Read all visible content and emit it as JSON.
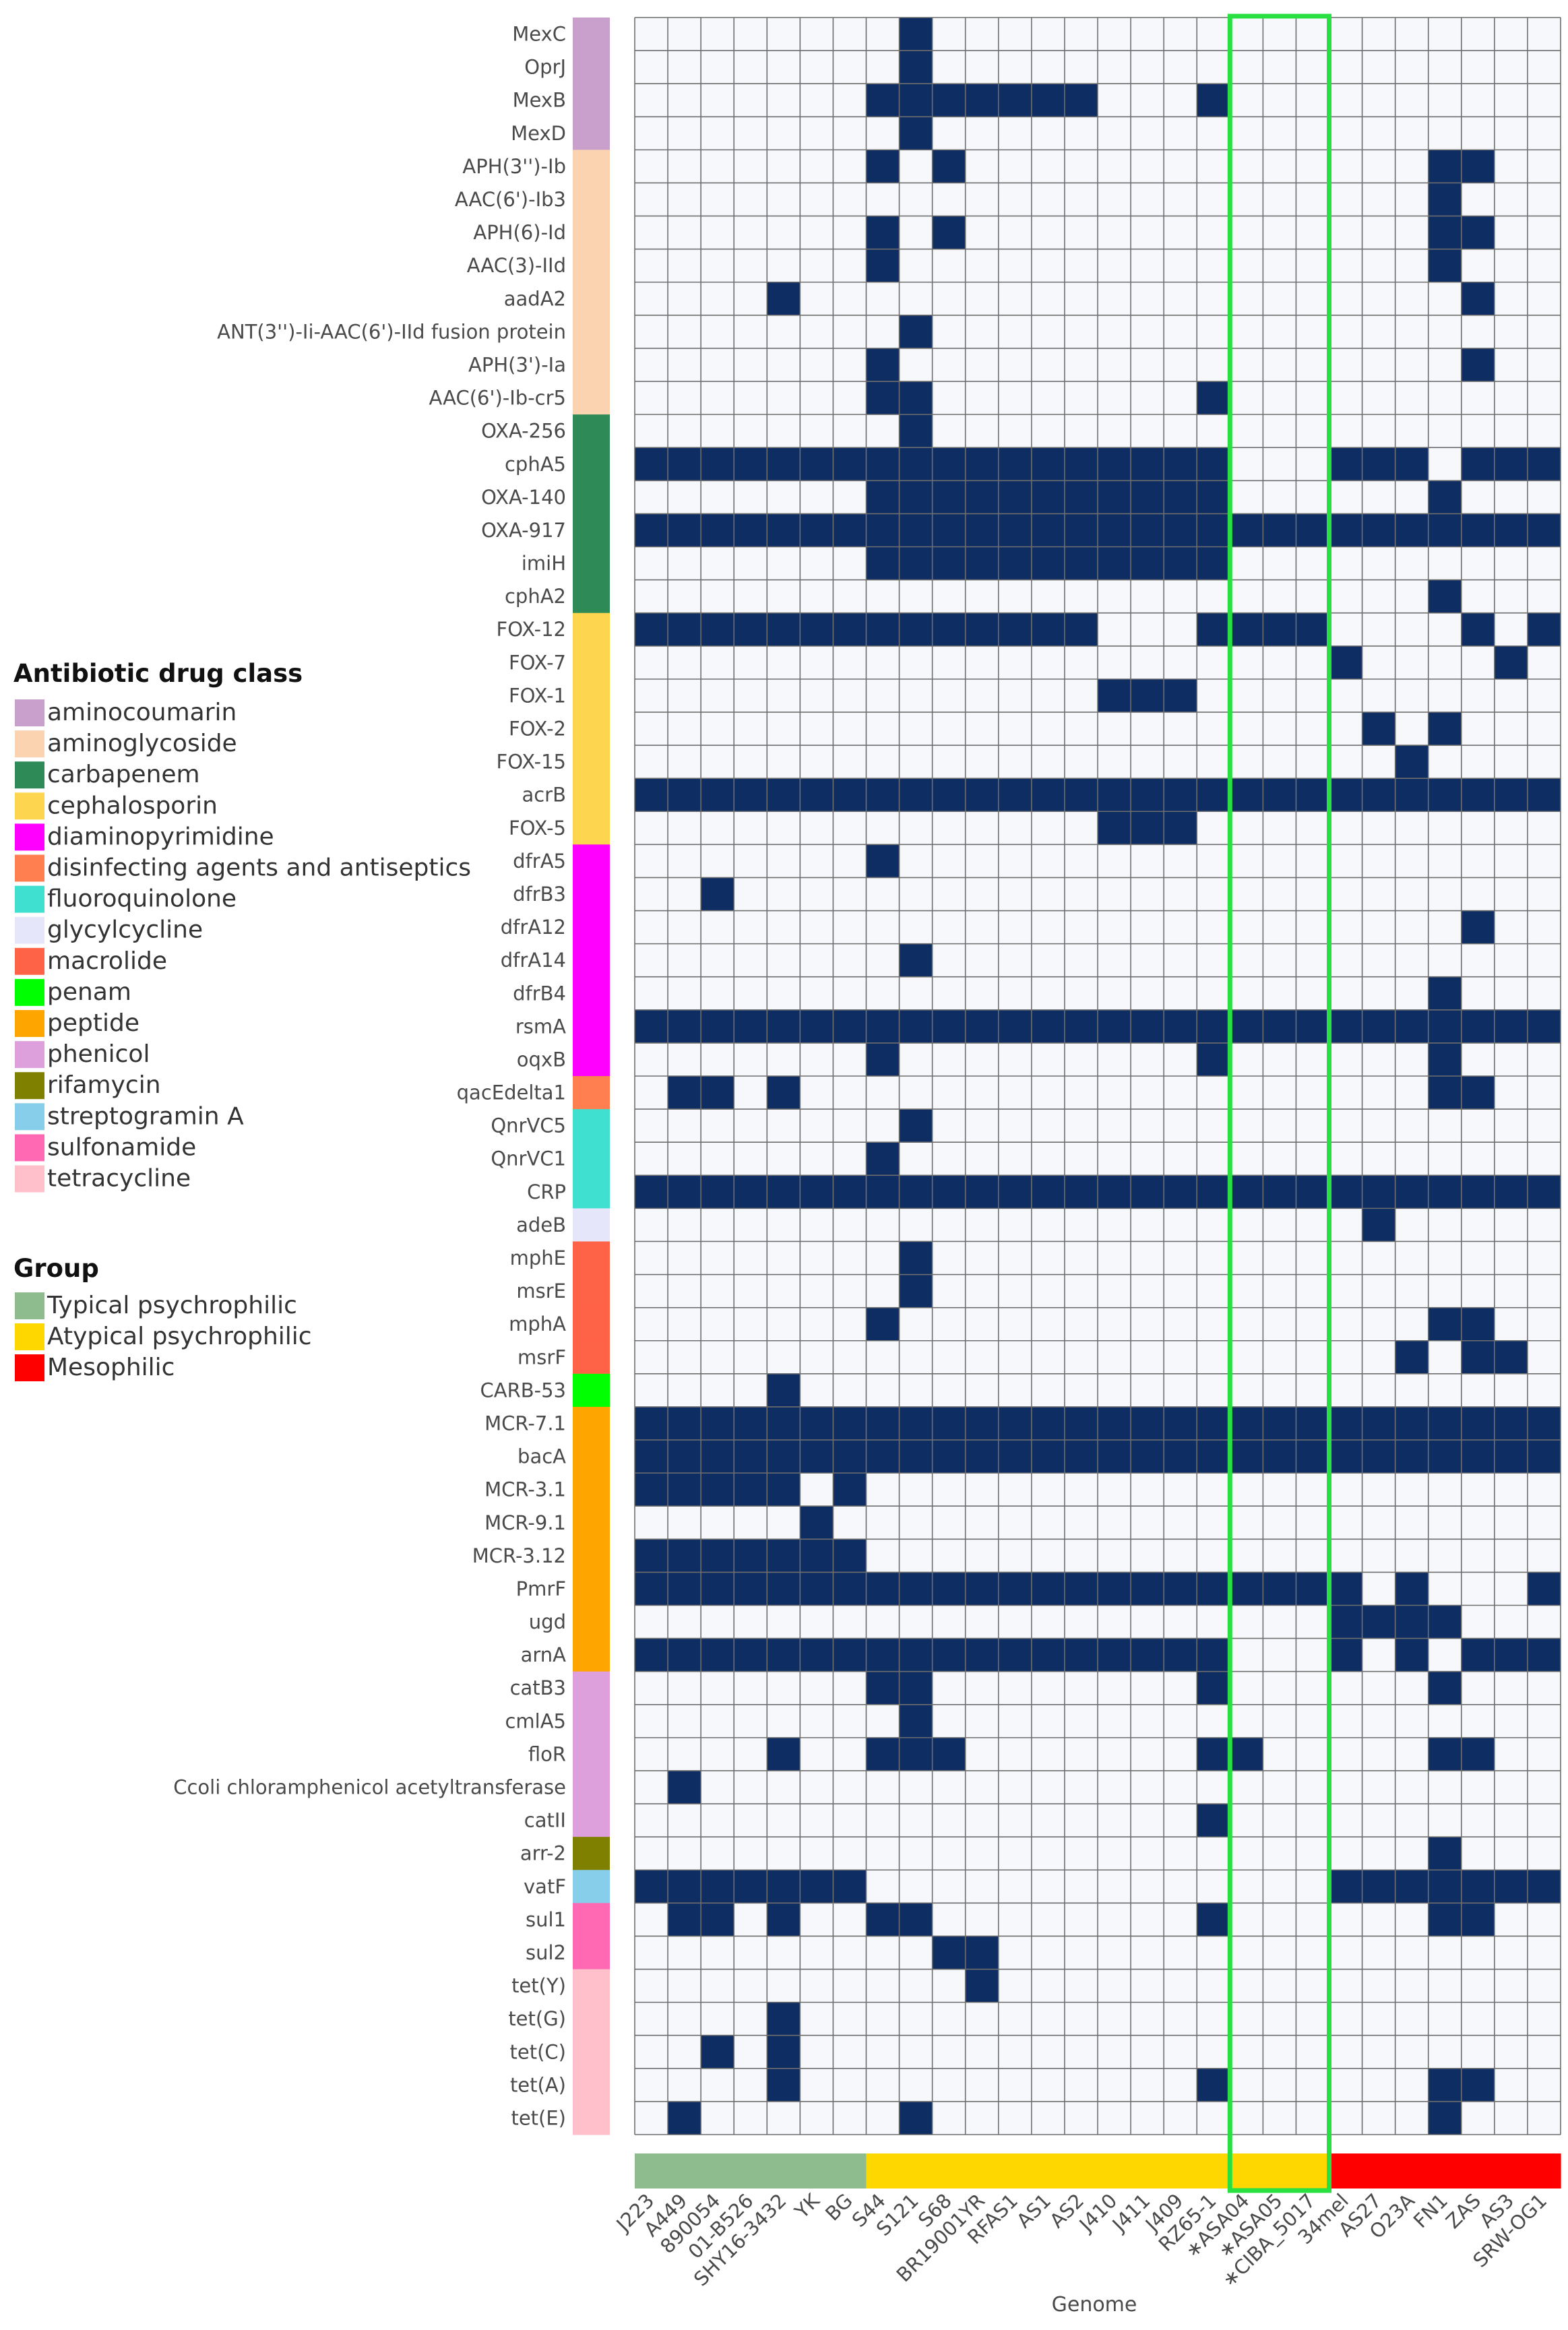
{
  "chart_data": {
    "type": "heatmap",
    "title": "",
    "xlabel": "Genome",
    "ylabel": "",
    "present_color": "#0d2d63",
    "absent_color": "#f6f8fb",
    "grid_color": "#6e6e6e",
    "highlight_color": "#29e043",
    "highlight_columns": [
      "ASA04",
      "ASA05",
      "CIBA_5017"
    ],
    "genomes": [
      {
        "name": "J223",
        "label": "J223",
        "group": "Typical psychrophilic"
      },
      {
        "name": "A449",
        "label": "A449",
        "group": "Typical psychrophilic"
      },
      {
        "name": "890054",
        "label": "890054",
        "group": "Typical psychrophilic"
      },
      {
        "name": "01-B526",
        "label": "01-B526",
        "group": "Typical psychrophilic"
      },
      {
        "name": "SHY16-3432",
        "label": "SHY16-3432",
        "group": "Typical psychrophilic"
      },
      {
        "name": "YK",
        "label": "YK",
        "group": "Typical psychrophilic"
      },
      {
        "name": "BG",
        "label": "BG",
        "group": "Typical psychrophilic"
      },
      {
        "name": "S44",
        "label": "S44",
        "group": "Atypical psychrophilic"
      },
      {
        "name": "S121",
        "label": "S121",
        "group": "Atypical psychrophilic"
      },
      {
        "name": "S68",
        "label": "S68",
        "group": "Atypical psychrophilic"
      },
      {
        "name": "BR19001YR",
        "label": "BR19001YR",
        "group": "Atypical psychrophilic"
      },
      {
        "name": "RFAS1",
        "label": "RFAS1",
        "group": "Atypical psychrophilic"
      },
      {
        "name": "AS1",
        "label": "AS1",
        "group": "Atypical psychrophilic"
      },
      {
        "name": "AS2",
        "label": "AS2",
        "group": "Atypical psychrophilic"
      },
      {
        "name": "J410",
        "label": "J410",
        "group": "Atypical psychrophilic"
      },
      {
        "name": "J411",
        "label": "J411",
        "group": "Atypical psychrophilic"
      },
      {
        "name": "J409",
        "label": "J409",
        "group": "Atypical psychrophilic"
      },
      {
        "name": "RZ65-1",
        "label": "RZ65-1",
        "group": "Atypical psychrophilic"
      },
      {
        "name": "ASA04",
        "label": "∗ASA04",
        "group": "Atypical psychrophilic"
      },
      {
        "name": "ASA05",
        "label": "∗ASA05",
        "group": "Atypical psychrophilic"
      },
      {
        "name": "CIBA_5017",
        "label": "∗CIBA_5017",
        "group": "Atypical psychrophilic"
      },
      {
        "name": "34mel",
        "label": "34mel",
        "group": "Mesophilic"
      },
      {
        "name": "AS27",
        "label": "AS27",
        "group": "Mesophilic"
      },
      {
        "name": "O23A",
        "label": "O23A",
        "group": "Mesophilic"
      },
      {
        "name": "FN1",
        "label": "FN1",
        "group": "Mesophilic"
      },
      {
        "name": "ZAS",
        "label": "ZAS",
        "group": "Mesophilic"
      },
      {
        "name": "AS3",
        "label": "AS3",
        "group": "Mesophilic"
      },
      {
        "name": "SRW-OG1",
        "label": "SRW-OG1",
        "group": "Mesophilic"
      }
    ],
    "genes": [
      {
        "name": "MexC",
        "class": "aminocoumarin",
        "row": "0000000010000000000000000000"
      },
      {
        "name": "OprJ",
        "class": "aminocoumarin",
        "row": "0000000010000000000000000000"
      },
      {
        "name": "MexB",
        "class": "aminocoumarin",
        "row": "0000000111111100010000000000"
      },
      {
        "name": "MexD",
        "class": "aminocoumarin",
        "row": "0000000010000000000000000000"
      },
      {
        "name": "APH(3'')-Ib",
        "class": "aminoglycoside",
        "row": "0000000101000000000000001100"
      },
      {
        "name": "AAC(6')-Ib3",
        "class": "aminoglycoside",
        "row": "0000000000000000000000001000"
      },
      {
        "name": "APH(6)-Id",
        "class": "aminoglycoside",
        "row": "0000000101000000000000001100"
      },
      {
        "name": "AAC(3)-IId",
        "class": "aminoglycoside",
        "row": "0000000100000000000000001000"
      },
      {
        "name": "aadA2",
        "class": "aminoglycoside",
        "row": "0000100000000000000000000100"
      },
      {
        "name": "ANT(3'')-Ii-AAC(6')-IId fusion protein",
        "class": "aminoglycoside",
        "row": "0000000010000000000000000000"
      },
      {
        "name": "APH(3')-Ia",
        "class": "aminoglycoside",
        "row": "0000000100000000000000000100"
      },
      {
        "name": "AAC(6')-Ib-cr5",
        "class": "aminoglycoside",
        "row": "0000000110000000010000000000"
      },
      {
        "name": "OXA-256",
        "class": "carbapenem",
        "row": "0000000010000000000000000000"
      },
      {
        "name": "cphA5",
        "class": "carbapenem",
        "row": "1111111111111111110001110111"
      },
      {
        "name": "OXA-140",
        "class": "carbapenem",
        "row": "0000000111111111110000001000"
      },
      {
        "name": "OXA-917",
        "class": "carbapenem",
        "row": "1111111111111111111111111111"
      },
      {
        "name": "imiH",
        "class": "carbapenem",
        "row": "0000000111111111110000000000"
      },
      {
        "name": "cphA2",
        "class": "carbapenem",
        "row": "0000000000000000000000001000"
      },
      {
        "name": "FOX-12",
        "class": "cephalosporin",
        "row": "1111111111111100011110000101"
      },
      {
        "name": "FOX-7",
        "class": "cephalosporin",
        "row": "0000000000000000000001000010"
      },
      {
        "name": "FOX-1",
        "class": "cephalosporin",
        "row": "0000000000000011100000000000"
      },
      {
        "name": "FOX-2",
        "class": "cephalosporin",
        "row": "0000000000000000000000101000"
      },
      {
        "name": "FOX-15",
        "class": "cephalosporin",
        "row": "0000000000000000000000010000"
      },
      {
        "name": "acrB",
        "class": "cephalosporin",
        "row": "1111111111111111111111111111"
      },
      {
        "name": "FOX-5",
        "class": "cephalosporin",
        "row": "0000000000000011100000000000"
      },
      {
        "name": "dfrA5",
        "class": "diaminopyrimidine",
        "row": "0000000100000000000000000000"
      },
      {
        "name": "dfrB3",
        "class": "diaminopyrimidine",
        "row": "0010000000000000000000000000"
      },
      {
        "name": "dfrA12",
        "class": "diaminopyrimidine",
        "row": "0000000000000000000000000100"
      },
      {
        "name": "dfrA14",
        "class": "diaminopyrimidine",
        "row": "0000000010000000000000000000"
      },
      {
        "name": "dfrB4",
        "class": "diaminopyrimidine",
        "row": "0000000000000000000000001000"
      },
      {
        "name": "rsmA",
        "class": "diaminopyrimidine",
        "row": "1111111111111111111111111111"
      },
      {
        "name": "oqxB",
        "class": "diaminopyrimidine",
        "row": "0000000100000000010000001000"
      },
      {
        "name": "qacEdelta1",
        "class": "disinfecting agents and antiseptics",
        "row": "0110100000000000000000001100"
      },
      {
        "name": "QnrVC5",
        "class": "fluoroquinolone",
        "row": "0000000010000000000000000000"
      },
      {
        "name": "QnrVC1",
        "class": "fluoroquinolone",
        "row": "0000000100000000000000000000"
      },
      {
        "name": "CRP",
        "class": "fluoroquinolone",
        "row": "1111111111111111111111111111"
      },
      {
        "name": "adeB",
        "class": "glycylcycline",
        "row": "0000000000000000000000100000"
      },
      {
        "name": "mphE",
        "class": "macrolide",
        "row": "0000000010000000000000000000"
      },
      {
        "name": "msrE",
        "class": "macrolide",
        "row": "0000000010000000000000000000"
      },
      {
        "name": "mphA",
        "class": "macrolide",
        "row": "0000000100000000000000001100"
      },
      {
        "name": "msrF",
        "class": "macrolide",
        "row": "0000000000000000000000010110"
      },
      {
        "name": "CARB-53",
        "class": "penam",
        "row": "0000100000000000000000000000"
      },
      {
        "name": "MCR-7.1",
        "class": "peptide",
        "row": "1111111111111111111111111111"
      },
      {
        "name": "bacA",
        "class": "peptide",
        "row": "1111111111111111111111111111"
      },
      {
        "name": "MCR-3.1",
        "class": "peptide",
        "row": "1111101000000000000000000000"
      },
      {
        "name": "MCR-9.1",
        "class": "peptide",
        "row": "0000010000000000000000000000"
      },
      {
        "name": "MCR-3.12",
        "class": "peptide",
        "row": "1111111000000000000000000000"
      },
      {
        "name": "PmrF",
        "class": "peptide",
        "row": "1111111111111111111111010001"
      },
      {
        "name": "ugd",
        "class": "peptide",
        "row": "0000000000000000000001111000"
      },
      {
        "name": "arnA",
        "class": "peptide",
        "row": "1111111111111111110001010111"
      },
      {
        "name": "catB3",
        "class": "phenicol",
        "row": "0000000110000000010000001000"
      },
      {
        "name": "cmlA5",
        "class": "phenicol",
        "row": "0000000010000000000000000000"
      },
      {
        "name": "floR",
        "class": "phenicol",
        "row": "0000100111000000011000001100"
      },
      {
        "name": "Ccoli chloramphenicol acetyltransferase",
        "class": "phenicol",
        "row": "0100000000000000000000000000"
      },
      {
        "name": "catII",
        "class": "phenicol",
        "row": "0000000000000000010000000000"
      },
      {
        "name": "arr-2",
        "class": "rifamycin",
        "row": "0000000000000000000000001000"
      },
      {
        "name": "vatF",
        "class": "streptogramin A",
        "row": "1111111000000000000001111111"
      },
      {
        "name": "sul1",
        "class": "sulfonamide",
        "row": "0110100110000000010000001100"
      },
      {
        "name": "sul2",
        "class": "sulfonamide",
        "row": "0000000001100000000000000000"
      },
      {
        "name": "tet(Y)",
        "class": "tetracycline",
        "row": "0000000000100000000000000000"
      },
      {
        "name": "tet(G)",
        "class": "tetracycline",
        "row": "0000100000000000000000000000"
      },
      {
        "name": "tet(C)",
        "class": "tetracycline",
        "row": "0010100000000000000000000000"
      },
      {
        "name": "tet(A)",
        "class": "tetracycline",
        "row": "0000100000000000010000001100"
      },
      {
        "name": "tet(E)",
        "class": "tetracycline",
        "row": "0100000010000000000000001000"
      }
    ],
    "drug_classes": [
      {
        "name": "aminocoumarin",
        "color": "#c9a0cc"
      },
      {
        "name": "aminoglycoside",
        "color": "#fcd3b0"
      },
      {
        "name": "carbapenem",
        "color": "#2e8b57"
      },
      {
        "name": "cephalosporin",
        "color": "#fdd54f"
      },
      {
        "name": "diaminopyrimidine",
        "color": "#ff00ff"
      },
      {
        "name": "disinfecting agents and antiseptics",
        "color": "#ff7f50"
      },
      {
        "name": "fluoroquinolone",
        "color": "#40e0d0"
      },
      {
        "name": "glycylcycline",
        "color": "#e6e6fa"
      },
      {
        "name": "macrolide",
        "color": "#ff6347"
      },
      {
        "name": "penam",
        "color": "#00ff00"
      },
      {
        "name": "peptide",
        "color": "#ffa500"
      },
      {
        "name": "phenicol",
        "color": "#dda0dd"
      },
      {
        "name": "rifamycin",
        "color": "#808000"
      },
      {
        "name": "streptogramin A",
        "color": "#87ceeb"
      },
      {
        "name": "sulfonamide",
        "color": "#ff69b4"
      },
      {
        "name": "tetracycline",
        "color": "#ffc0cb"
      }
    ],
    "groups": [
      {
        "name": "Typical psychrophilic",
        "color": "#8fbc8f"
      },
      {
        "name": "Atypical psychrophilic",
        "color": "#ffd700"
      },
      {
        "name": "Mesophilic",
        "color": "#ff0000"
      }
    ],
    "legend_drug_title": "Antibiotic drug class",
    "legend_group_title": "Group"
  }
}
